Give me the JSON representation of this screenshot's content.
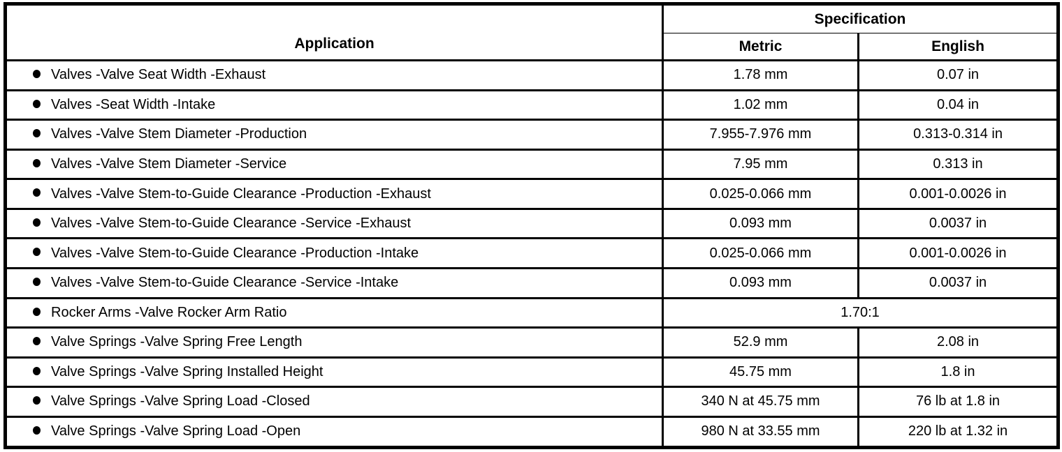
{
  "table": {
    "header": {
      "application": "Application",
      "specification": "Specification",
      "metric": "Metric",
      "english": "English"
    },
    "rows": [
      {
        "application": "Valves -Valve Seat Width -Exhaust",
        "metric": "1.78 mm",
        "english": "0.07 in"
      },
      {
        "application": "Valves -Seat Width -Intake",
        "metric": "1.02 mm",
        "english": "0.04 in"
      },
      {
        "application": "Valves -Valve Stem Diameter -Production",
        "metric": "7.955-7.976 mm",
        "english": "0.313-0.314 in"
      },
      {
        "application": "Valves -Valve Stem Diameter -Service",
        "metric": "7.95 mm",
        "english": "0.313 in"
      },
      {
        "application": "Valves -Valve Stem-to-Guide Clearance -Production -Exhaust",
        "metric": "0.025-0.066 mm",
        "english": "0.001-0.0026 in"
      },
      {
        "application": "Valves -Valve Stem-to-Guide Clearance -Service -Exhaust",
        "metric": "0.093 mm",
        "english": "0.0037 in"
      },
      {
        "application": "Valves -Valve Stem-to-Guide Clearance -Production -Intake",
        "metric": "0.025-0.066 mm",
        "english": "0.001-0.0026 in"
      },
      {
        "application": "Valves -Valve Stem-to-Guide Clearance -Service -Intake",
        "metric": "0.093 mm",
        "english": "0.0037 in"
      },
      {
        "application": "Rocker Arms -Valve Rocker Arm Ratio",
        "value": "1.70:1",
        "span": true
      },
      {
        "application": "Valve Springs -Valve Spring Free Length",
        "metric": "52.9 mm",
        "english": "2.08 in"
      },
      {
        "application": "Valve Springs -Valve Spring Installed Height",
        "metric": "45.75 mm",
        "english": "1.8 in"
      },
      {
        "application": "Valve Springs -Valve Spring Load -Closed",
        "metric": "340 N at 45.75 mm",
        "english": "76 lb at 1.8 in"
      },
      {
        "application": "Valve Springs -Valve Spring Load -Open",
        "metric": "980 N at 33.55 mm",
        "english": "220 lb at 1.32 in"
      }
    ],
    "colors": {
      "border": "#000000",
      "background": "#ffffff",
      "text": "#000000"
    }
  }
}
